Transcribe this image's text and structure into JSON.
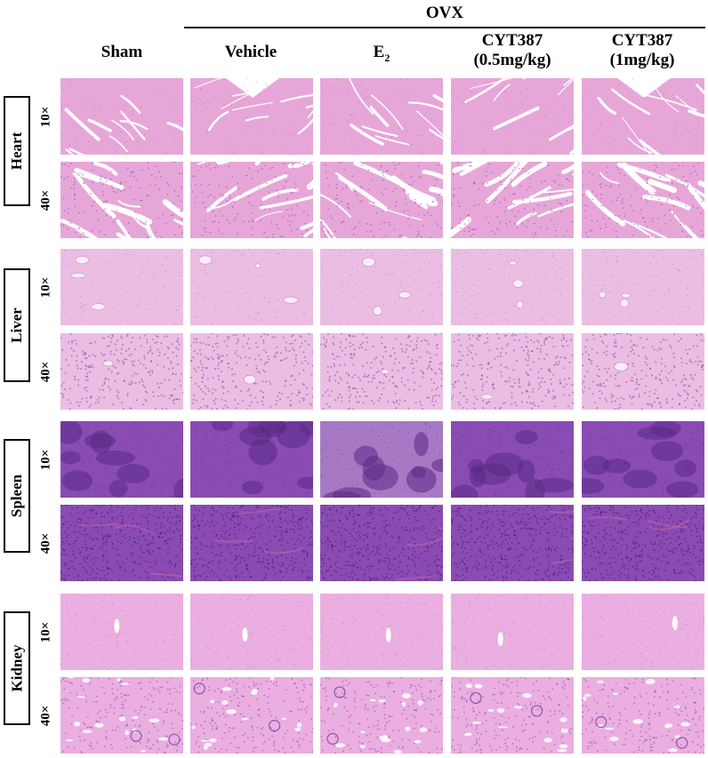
{
  "header": {
    "group_label": "OVX",
    "columns": [
      {
        "line1": "Sham",
        "line2": ""
      },
      {
        "line1": "Vehicle",
        "line2": ""
      },
      {
        "line1": "E",
        "sub": "2",
        "line2": ""
      },
      {
        "line1": "CYT387",
        "line2": "(0.5mg/kg)"
      },
      {
        "line1": "CYT387",
        "line2": "(1mg/kg)"
      }
    ]
  },
  "organs": [
    {
      "name": "Heart",
      "magnifications": [
        "10×",
        "40×"
      ],
      "tissue": "heart"
    },
    {
      "name": "Liver",
      "magnifications": [
        "10×",
        "40×"
      ],
      "tissue": "liver"
    },
    {
      "name": "Spleen",
      "magnifications": [
        "10×",
        "40×"
      ],
      "tissue": "spleen"
    },
    {
      "name": "Kidney",
      "magnifications": [
        "10×",
        "40×"
      ],
      "tissue": "kidney"
    }
  ],
  "colors": {
    "heart_base": "#e7a6d8",
    "liver_base": "#ebbde3",
    "spleen_base": "#8a4bb3",
    "kidney_base": "#eaaee0",
    "nuclei": "#7a3f9e",
    "background": "#ffffff"
  }
}
